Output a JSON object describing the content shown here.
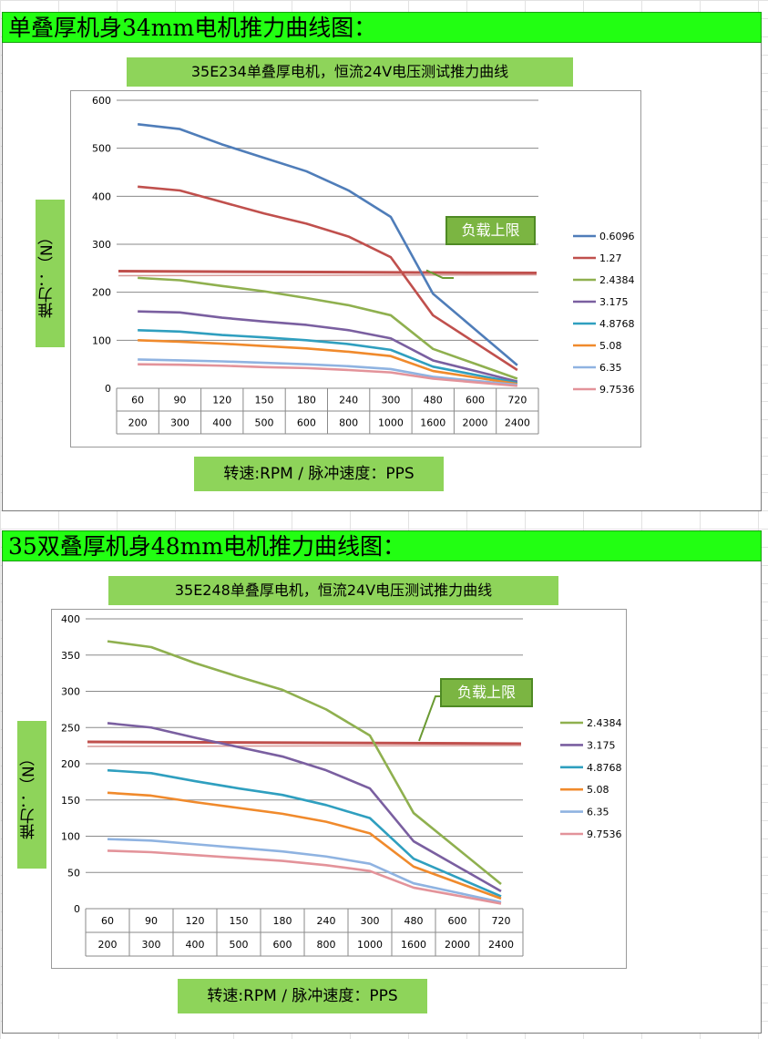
{
  "sections": [
    {
      "header": "单叠厚机身34mm电机推力曲线图："
    },
    {
      "header": "35双叠厚机身48mm电机推力曲线图："
    }
  ],
  "chart_data": [
    {
      "type": "line",
      "title": "35E234单叠厚电机，恒流24V电压测试推力曲线",
      "xlabel": "转速:RPM / 脉冲速度：PPS",
      "ylabel": "推力：（N）",
      "categories": [
        "60",
        "90",
        "120",
        "150",
        "180",
        "240",
        "300",
        "480",
        "600",
        "720"
      ],
      "categories2": [
        "200",
        "300",
        "400",
        "500",
        "600",
        "800",
        "1000",
        "1600",
        "2000",
        "2400"
      ],
      "ylim": [
        0,
        600
      ],
      "yticks": [
        0,
        100,
        200,
        300,
        400,
        500,
        600
      ],
      "limit_label": "负载上限",
      "limit_value": 242,
      "limit_color": "#c0504d",
      "legend_position": "right",
      "series": [
        {
          "name": "0.6096",
          "color": "#4f7db9",
          "values": [
            550,
            540,
            508,
            480,
            452,
            412,
            357,
            197,
            null,
            48
          ]
        },
        {
          "name": "1.27",
          "color": "#c0504d",
          "values": [
            420,
            412,
            388,
            364,
            343,
            316,
            273,
            152,
            null,
            38
          ]
        },
        {
          "name": "2.4384",
          "color": "#8fb04f",
          "values": [
            230,
            225,
            213,
            202,
            188,
            173,
            152,
            82,
            null,
            20
          ]
        },
        {
          "name": "3.175",
          "color": "#7a5fa0",
          "values": [
            160,
            158,
            147,
            139,
            132,
            121,
            104,
            58,
            null,
            14
          ]
        },
        {
          "name": "4.8768",
          "color": "#2f9fbf",
          "values": [
            121,
            118,
            111,
            106,
            100,
            92,
            80,
            45,
            null,
            11
          ]
        },
        {
          "name": "5.08",
          "color": "#f08a2c",
          "values": [
            100,
            97,
            93,
            88,
            83,
            76,
            67,
            36,
            null,
            9
          ]
        },
        {
          "name": "6.35",
          "color": "#8fb3e1",
          "values": [
            60,
            58,
            56,
            53,
            50,
            46,
            40,
            24,
            null,
            7
          ]
        },
        {
          "name": "9.7536",
          "color": "#e3939a",
          "values": [
            50,
            49,
            47,
            44,
            42,
            38,
            33,
            20,
            null,
            5
          ]
        }
      ]
    },
    {
      "type": "line",
      "title": "35E248单叠厚电机，恒流24V电压测试推力曲线",
      "xlabel": "转速:RPM / 脉冲速度：PPS",
      "ylabel": "推力：（N）",
      "categories": [
        "60",
        "90",
        "120",
        "150",
        "180",
        "240",
        "300",
        "480",
        "600",
        "720"
      ],
      "categories2": [
        "200",
        "300",
        "400",
        "500",
        "600",
        "800",
        "1000",
        "1600",
        "2000",
        "2400"
      ],
      "ylim": [
        0,
        400
      ],
      "yticks": [
        0,
        50,
        100,
        150,
        200,
        250,
        300,
        350,
        400
      ],
      "limit_label": "负载上限",
      "limit_value": 229,
      "limit_color": "#c0504d",
      "legend_position": "right",
      "series": [
        {
          "name": "2.4384",
          "color": "#8fb04f",
          "values": [
            369,
            361,
            339,
            320,
            302,
            275,
            239,
            132,
            null,
            34
          ]
        },
        {
          "name": "3.175",
          "color": "#7a5fa0",
          "values": [
            256,
            250,
            236,
            223,
            210,
            191,
            166,
            93,
            null,
            24
          ]
        },
        {
          "name": "4.8768",
          "color": "#2f9fbf",
          "values": [
            191,
            187,
            176,
            166,
            157,
            143,
            125,
            69,
            null,
            17
          ]
        },
        {
          "name": "5.08",
          "color": "#f08a2c",
          "values": [
            160,
            156,
            147,
            139,
            131,
            120,
            104,
            58,
            null,
            14
          ]
        },
        {
          "name": "6.35",
          "color": "#8fb3e1",
          "values": [
            96,
            94,
            89,
            84,
            79,
            72,
            62,
            35,
            null,
            9
          ]
        },
        {
          "name": "9.7536",
          "color": "#e3939a",
          "values": [
            80,
            78,
            74,
            70,
            66,
            60,
            52,
            29,
            null,
            7
          ]
        }
      ]
    }
  ]
}
